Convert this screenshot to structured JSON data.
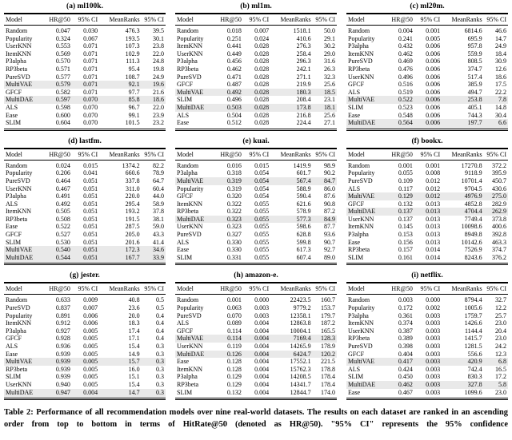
{
  "page": {
    "background": "#ffffff",
    "text_color": "#000000",
    "highlight_color": "#e9e9e9"
  },
  "columns": [
    "Model",
    "HR@50",
    "95% CI",
    "MeanRanks",
    "95% CI"
  ],
  "highlight_models": [
    "MultiVAE",
    "MultiDAE"
  ],
  "tables": [
    {
      "label": "(a) ml100k.",
      "rows": [
        [
          "Random",
          "0.047",
          "0.030",
          "476.3",
          "39.5"
        ],
        [
          "Popularity",
          "0.324",
          "0.067",
          "193.5",
          "30.1"
        ],
        [
          "UserKNN",
          "0.553",
          "0.071",
          "107.3",
          "23.8"
        ],
        [
          "ItemKNN",
          "0.569",
          "0.071",
          "102.9",
          "22.0"
        ],
        [
          "P3alpha",
          "0.570",
          "0.071",
          "111.3",
          "24.8"
        ],
        [
          "RP3beta",
          "0.571",
          "0.071",
          "95.4",
          "19.8"
        ],
        [
          "PureSVD",
          "0.577",
          "0.071",
          "108.7",
          "24.9"
        ],
        [
          "MultiVAE",
          "0.579",
          "0.071",
          "92.1",
          "19.6"
        ],
        [
          "GFCF",
          "0.582",
          "0.071",
          "97.7",
          "21.6"
        ],
        [
          "MultiDAE",
          "0.597",
          "0.070",
          "85.8",
          "18.6"
        ],
        [
          "ALS",
          "0.598",
          "0.070",
          "96.7",
          "22.0"
        ],
        [
          "Ease",
          "0.600",
          "0.070",
          "99.1",
          "23.9"
        ],
        [
          "SLIM",
          "0.604",
          "0.070",
          "101.5",
          "23.2"
        ]
      ]
    },
    {
      "label": "(b) ml1m.",
      "rows": [
        [
          "Random",
          "0.018",
          "0.007",
          "1518.1",
          "50.0"
        ],
        [
          "Popularity",
          "0.251",
          "0.024",
          "410.6",
          "29.1"
        ],
        [
          "ItemKNN",
          "0.441",
          "0.028",
          "276.3",
          "30.2"
        ],
        [
          "UserKNN",
          "0.449",
          "0.028",
          "258.4",
          "29.0"
        ],
        [
          "P3alpha",
          "0.456",
          "0.028",
          "296.3",
          "31.6"
        ],
        [
          "RP3beta",
          "0.462",
          "0.028",
          "242.1",
          "26.3"
        ],
        [
          "PureSVD",
          "0.471",
          "0.028",
          "271.1",
          "32.3"
        ],
        [
          "GFCF",
          "0.487",
          "0.028",
          "219.9",
          "25.6"
        ],
        [
          "MultiVAE",
          "0.492",
          "0.028",
          "180.3",
          "18.5"
        ],
        [
          "SLIM",
          "0.496",
          "0.028",
          "208.4",
          "23.1"
        ],
        [
          "MultiDAE",
          "0.503",
          "0.028",
          "173.8",
          "18.1"
        ],
        [
          "ALS",
          "0.504",
          "0.028",
          "216.8",
          "25.6"
        ],
        [
          "Ease",
          "0.512",
          "0.028",
          "224.4",
          "27.1"
        ]
      ]
    },
    {
      "label": "(c) ml20m.",
      "rows": [
        [
          "Random",
          "0.004",
          "0.001",
          "6814.6",
          "46.6"
        ],
        [
          "Popularity",
          "0.241",
          "0.005",
          "695.9",
          "14.7"
        ],
        [
          "P3alpha",
          "0.432",
          "0.006",
          "957.8",
          "24.9"
        ],
        [
          "ItemKNN",
          "0.462",
          "0.006",
          "559.9",
          "18.4"
        ],
        [
          "PureSVD",
          "0.469",
          "0.006",
          "808.5",
          "30.9"
        ],
        [
          "RP3beta",
          "0.476",
          "0.006",
          "374.7",
          "12.6"
        ],
        [
          "UserKNN",
          "0.496",
          "0.006",
          "517.4",
          "18.6"
        ],
        [
          "GFCF",
          "0.516",
          "0.006",
          "385.9",
          "17.5"
        ],
        [
          "ALS",
          "0.519",
          "0.006",
          "494.7",
          "22.2"
        ],
        [
          "MultiVAE",
          "0.522",
          "0.006",
          "253.8",
          "7.8"
        ],
        [
          "SLIM",
          "0.523",
          "0.006",
          "405.1",
          "14.8"
        ],
        [
          "Ease",
          "0.548",
          "0.006",
          "744.3",
          "30.4"
        ],
        [
          "MultiDAE",
          "0.564",
          "0.006",
          "197.7",
          "6.6"
        ]
      ]
    },
    {
      "label": "(d) lastfm.",
      "rows": [
        [
          "Random",
          "0.024",
          "0.015",
          "1374.2",
          "82.2"
        ],
        [
          "Popularity",
          "0.206",
          "0.041",
          "660.6",
          "78.9"
        ],
        [
          "PureSVD",
          "0.464",
          "0.051",
          "337.8",
          "64.7"
        ],
        [
          "UserKNN",
          "0.467",
          "0.051",
          "311.0",
          "60.4"
        ],
        [
          "P3alpha",
          "0.491",
          "0.051",
          "220.0",
          "44.0"
        ],
        [
          "ALS",
          "0.492",
          "0.051",
          "295.4",
          "58.9"
        ],
        [
          "ItemKNN",
          "0.505",
          "0.051",
          "193.2",
          "37.8"
        ],
        [
          "RP3beta",
          "0.508",
          "0.051",
          "191.5",
          "38.1"
        ],
        [
          "Ease",
          "0.522",
          "0.051",
          "287.5",
          "59.0"
        ],
        [
          "GFCF",
          "0.527",
          "0.051",
          "205.0",
          "43.3"
        ],
        [
          "SLIM",
          "0.530",
          "0.051",
          "201.6",
          "41.4"
        ],
        [
          "MultiVAE",
          "0.540",
          "0.051",
          "172.3",
          "34.6"
        ],
        [
          "MultiDAE",
          "0.544",
          "0.051",
          "167.7",
          "33.9"
        ]
      ]
    },
    {
      "label": "(e) kuai.",
      "rows": [
        [
          "Random",
          "0.016",
          "0.015",
          "1419.9",
          "98.9"
        ],
        [
          "P3alpha",
          "0.318",
          "0.054",
          "601.7",
          "90.2"
        ],
        [
          "MultiVAE",
          "0.319",
          "0.054",
          "567.4",
          "84.7"
        ],
        [
          "Popularity",
          "0.319",
          "0.054",
          "588.9",
          "86.0"
        ],
        [
          "GFCF",
          "0.320",
          "0.054",
          "590.4",
          "87.6"
        ],
        [
          "ItemKNN",
          "0.322",
          "0.055",
          "621.6",
          "90.8"
        ],
        [
          "RP3beta",
          "0.322",
          "0.055",
          "578.9",
          "87.2"
        ],
        [
          "MultiDAE",
          "0.323",
          "0.055",
          "577.3",
          "84.9"
        ],
        [
          "UserKNN",
          "0.323",
          "0.055",
          "598.6",
          "87.7"
        ],
        [
          "PureSVD",
          "0.327",
          "0.055",
          "628.8",
          "93.6"
        ],
        [
          "ALS",
          "0.330",
          "0.055",
          "599.8",
          "90.7"
        ],
        [
          "Ease",
          "0.330",
          "0.055",
          "617.3",
          "92.7"
        ],
        [
          "SLIM",
          "0.331",
          "0.055",
          "607.4",
          "89.0"
        ]
      ]
    },
    {
      "label": "(f) bookx.",
      "rows": [
        [
          "Random",
          "0.001",
          "0.001",
          "17270.8",
          "372.2"
        ],
        [
          "Popularity",
          "0.055",
          "0.008",
          "9118.9",
          "395.9"
        ],
        [
          "PureSVD",
          "0.109",
          "0.012",
          "10701.4",
          "450.7"
        ],
        [
          "ALS",
          "0.117",
          "0.012",
          "9704.5",
          "430.6"
        ],
        [
          "MultiVAE",
          "0.129",
          "0.012",
          "4976.9",
          "275.0"
        ],
        [
          "GFCF",
          "0.132",
          "0.013",
          "4852.8",
          "282.9"
        ],
        [
          "MultiDAE",
          "0.137",
          "0.013",
          "4704.4",
          "262.9"
        ],
        [
          "UserKNN",
          "0.137",
          "0.013",
          "7749.4",
          "373.8"
        ],
        [
          "ItemKNN",
          "0.145",
          "0.013",
          "10098.6",
          "400.6"
        ],
        [
          "P3alpha",
          "0.153",
          "0.013",
          "8949.8",
          "392.8"
        ],
        [
          "Ease",
          "0.156",
          "0.013",
          "10142.6",
          "463.3"
        ],
        [
          "RP3beta",
          "0.157",
          "0.014",
          "7526.9",
          "374.7"
        ],
        [
          "SLIM",
          "0.161",
          "0.014",
          "8243.6",
          "376.2"
        ]
      ]
    },
    {
      "label": "(g) jester.",
      "rows": [
        [
          "Random",
          "0.633",
          "0.009",
          "40.8",
          "0.5"
        ],
        [
          "PureSVD",
          "0.837",
          "0.007",
          "23.6",
          "0.5"
        ],
        [
          "Popularity",
          "0.891",
          "0.006",
          "20.0",
          "0.4"
        ],
        [
          "ItemKNN",
          "0.912",
          "0.006",
          "18.3",
          "0.4"
        ],
        [
          "P3alpha",
          "0.927",
          "0.005",
          "17.4",
          "0.4"
        ],
        [
          "GFCF",
          "0.928",
          "0.005",
          "17.1",
          "0.4"
        ],
        [
          "ALS",
          "0.936",
          "0.005",
          "15.4",
          "0.3"
        ],
        [
          "Ease",
          "0.939",
          "0.005",
          "14.9",
          "0.3"
        ],
        [
          "MultiVAE",
          "0.939",
          "0.005",
          "15.7",
          "0.3"
        ],
        [
          "RP3beta",
          "0.939",
          "0.005",
          "16.0",
          "0.3"
        ],
        [
          "SLIM",
          "0.939",
          "0.005",
          "15.1",
          "0.3"
        ],
        [
          "UserKNN",
          "0.940",
          "0.005",
          "15.4",
          "0.3"
        ],
        [
          "MultiDAE",
          "0.947",
          "0.004",
          "14.7",
          "0.3"
        ]
      ]
    },
    {
      "label": "(h) amazon-e.",
      "rows": [
        [
          "Random",
          "0.001",
          "0.000",
          "22423.5",
          "160.7"
        ],
        [
          "Popularity",
          "0.063",
          "0.003",
          "9779.2",
          "153.7"
        ],
        [
          "PureSVD",
          "0.070",
          "0.003",
          "12358.1",
          "179.7"
        ],
        [
          "ALS",
          "0.089",
          "0.004",
          "12863.8",
          "187.2"
        ],
        [
          "GFCF",
          "0.114",
          "0.004",
          "10004.1",
          "165.5"
        ],
        [
          "MultiVAE",
          "0.114",
          "0.004",
          "7169.4",
          "128.3"
        ],
        [
          "UserKNN",
          "0.119",
          "0.004",
          "14265.9",
          "178.9"
        ],
        [
          "MultiDAE",
          "0.126",
          "0.004",
          "6424.7",
          "120.2"
        ],
        [
          "Ease",
          "0.128",
          "0.004",
          "17552.1",
          "221.5"
        ],
        [
          "ItemKNN",
          "0.128",
          "0.004",
          "15762.3",
          "178.8"
        ],
        [
          "P3alpha",
          "0.129",
          "0.004",
          "14208.5",
          "178.4"
        ],
        [
          "RP3beta",
          "0.129",
          "0.004",
          "14341.7",
          "178.4"
        ],
        [
          "SLIM",
          "0.132",
          "0.004",
          "12844.7",
          "174.0"
        ]
      ]
    },
    {
      "label": "(i) netflix.",
      "rows": [
        [
          "Random",
          "0.003",
          "0.000",
          "8794.4",
          "32.7"
        ],
        [
          "Popularity",
          "0.172",
          "0.002",
          "1005.6",
          "12.2"
        ],
        [
          "P3alpha",
          "0.361",
          "0.003",
          "1759.7",
          "25.7"
        ],
        [
          "ItemKNN",
          "0.374",
          "0.003",
          "1426.6",
          "23.0"
        ],
        [
          "UserKNN",
          "0.387",
          "0.003",
          "1144.4",
          "20.4"
        ],
        [
          "RP3beta",
          "0.389",
          "0.003",
          "1415.7",
          "23.0"
        ],
        [
          "PureSVD",
          "0.398",
          "0.003",
          "1281.5",
          "24.2"
        ],
        [
          "GFCF",
          "0.404",
          "0.003",
          "556.6",
          "12.3"
        ],
        [
          "MultiVAE",
          "0.417",
          "0.003",
          "420.9",
          "6.8"
        ],
        [
          "ALS",
          "0.424",
          "0.003",
          "742.4",
          "16.5"
        ],
        [
          "SLIM",
          "0.450",
          "0.003",
          "830.3",
          "17.2"
        ],
        [
          "MultiDAE",
          "0.462",
          "0.003",
          "327.8",
          "5.8"
        ],
        [
          "Ease",
          "0.467",
          "0.003",
          "1099.6",
          "23.0"
        ]
      ]
    }
  ],
  "caption": "Table 2: Performance of all recommendation models over nine real-world datasets. The results on each dataset are ranked in an ascending order from top to bottom in terms of HitRate@50 (denoted as HR@50). \"95% CI\" represents the 95% confidence"
}
